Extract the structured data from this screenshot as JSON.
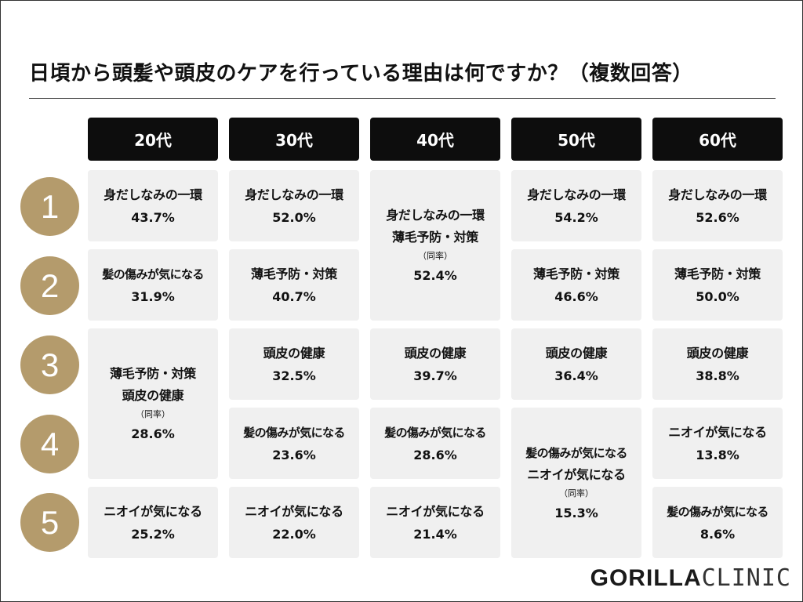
{
  "title": "日頃から頭髪や頭皮のケアを行っている理由は何ですか？（複数回答）",
  "age_groups": [
    "20代",
    "30代",
    "40代",
    "50代",
    "60代"
  ],
  "ranks": [
    "1",
    "2",
    "3",
    "4",
    "5"
  ],
  "cells": {
    "c20": {
      "r1": {
        "label": "身だしなみの一環",
        "pct": "43.7%"
      },
      "r2": {
        "label": "髪の傷みが気になる",
        "pct": "31.9%"
      },
      "r34": {
        "label1": "薄毛予防・対策",
        "label2": "頭皮の健康",
        "tie": "（同率）",
        "pct": "28.6%"
      },
      "r5": {
        "label": "ニオイが気になる",
        "pct": "25.2%"
      }
    },
    "c30": {
      "r1": {
        "label": "身だしなみの一環",
        "pct": "52.0%"
      },
      "r2": {
        "label": "薄毛予防・対策",
        "pct": "40.7%"
      },
      "r3": {
        "label": "頭皮の健康",
        "pct": "32.5%"
      },
      "r4": {
        "label": "髪の傷みが気になる",
        "pct": "23.6%"
      },
      "r5": {
        "label": "ニオイが気になる",
        "pct": "22.0%"
      }
    },
    "c40": {
      "r12": {
        "label1": "身だしなみの一環",
        "label2": "薄毛予防・対策",
        "tie": "（同率）",
        "pct": "52.4%"
      },
      "r3": {
        "label": "頭皮の健康",
        "pct": "39.7%"
      },
      "r4": {
        "label": "髪の傷みが気になる",
        "pct": "28.6%"
      },
      "r5": {
        "label": "ニオイが気になる",
        "pct": "21.4%"
      }
    },
    "c50": {
      "r1": {
        "label": "身だしなみの一環",
        "pct": "54.2%"
      },
      "r2": {
        "label": "薄毛予防・対策",
        "pct": "46.6%"
      },
      "r3": {
        "label": "頭皮の健康",
        "pct": "36.4%"
      },
      "r45": {
        "label1": "髪の傷みが気になる",
        "label2": "ニオイが気になる",
        "tie": "（同率）",
        "pct": "15.3%"
      }
    },
    "c60": {
      "r1": {
        "label": "身だしなみの一環",
        "pct": "52.6%"
      },
      "r2": {
        "label": "薄毛予防・対策",
        "pct": "50.0%"
      },
      "r3": {
        "label": "頭皮の健康",
        "pct": "38.8%"
      },
      "r4": {
        "label": "ニオイが気になる",
        "pct": "13.8%"
      },
      "r5": {
        "label": "髪の傷みが気になる",
        "pct": "8.6%"
      }
    }
  },
  "logo": {
    "bold": "GORILLA",
    "light": "CLINIC"
  }
}
